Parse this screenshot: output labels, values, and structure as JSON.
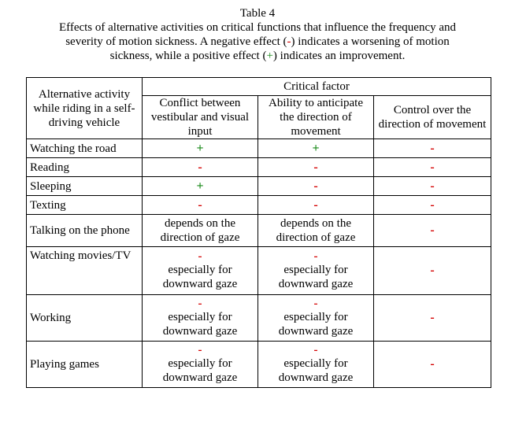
{
  "caption": {
    "title": "Table 4",
    "line1": "Effects of alternative activities on critical functions that influence the frequency and",
    "line2": "severity of motion sickness.  A negative effect (",
    "line2_neg": "-",
    "line2_mid": ") indicates a worsening of motion",
    "line3a": "sickness, while a positive effect (",
    "line3_pos": "+",
    "line3b": ") indicates an improvement."
  },
  "table": {
    "activity_header": "Alternative activity while riding in a self-driving vehicle",
    "critical_factor_header": "Critical factor",
    "factor_headers": [
      "Conflict between vestibular and visual input",
      "Ability to anticipate the direction of movement",
      "Control over the direction of movement"
    ],
    "rows": [
      {
        "activity": "Watching the road",
        "c1": "+",
        "c2": "+",
        "c3": "-"
      },
      {
        "activity": "Reading",
        "c1": "-",
        "c2": "-",
        "c3": "-"
      },
      {
        "activity": "Sleeping",
        "c1": "+",
        "c2": "-",
        "c3": "-"
      },
      {
        "activity": "Texting",
        "c1": "-",
        "c2": "-",
        "c3": "-"
      },
      {
        "activity": "Talking on the phone",
        "c1": "depends on the direction of gaze",
        "c2": "depends on the direction of gaze",
        "c3": "-"
      },
      {
        "activity": "Watching movies/TV",
        "c1_sym": "-",
        "c1": "especially for downward gaze",
        "c2_sym": "-",
        "c2": "especially for downward gaze",
        "c3": "-"
      },
      {
        "activity": "Working",
        "c1_sym": "-",
        "c1": "especially for downward gaze",
        "c2_sym": "-",
        "c2": "especially for downward gaze",
        "c3": "-"
      },
      {
        "activity": "Playing games",
        "c1_sym": "-",
        "c1": "especially for downward gaze",
        "c2_sym": "-",
        "c2": "especially for downward gaze",
        "c3": "-"
      }
    ]
  },
  "colors": {
    "negative": "#d40000",
    "positive": "#1a8a1a"
  }
}
